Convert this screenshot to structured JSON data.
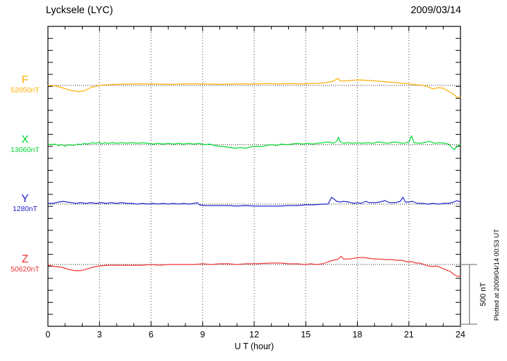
{
  "header": {
    "station_title": "Lycksele (LYC)",
    "date": "2009/03/14"
  },
  "axis": {
    "xlabel": "U T (hour)",
    "tick_labels": [
      "0",
      "3",
      "6",
      "9",
      "12",
      "15",
      "18",
      "21",
      "24"
    ]
  },
  "scale_bar": {
    "label": "500 nT"
  },
  "plot_note": "Plotted at 2009/04/14 00:53 UT",
  "chart_data": {
    "type": "line",
    "title": "Lycksele (LYC) magnetogram 2009/03/14",
    "xlabel": "U T (hour)",
    "x_range_hours": [
      0,
      24
    ],
    "x_tick_interval_hours": 3,
    "grid": "dotted vertical gridlines every 3 h; dotted horizontal baseline per channel",
    "legend_position": "left margin channel labels",
    "scale_bar_nT": 500,
    "series": [
      {
        "name": "F",
        "baseline_label": "52050nT",
        "baseline_nT": 52050,
        "color": "#FFAE00",
        "points_hour_deltaNT": [
          [
            0,
            0
          ],
          [
            0.5,
            -6
          ],
          [
            0.9,
            -23
          ],
          [
            1.3,
            -41
          ],
          [
            1.8,
            -52
          ],
          [
            2.1,
            -46
          ],
          [
            2.5,
            -17
          ],
          [
            3,
            0
          ],
          [
            3.5,
            6
          ],
          [
            4,
            9
          ],
          [
            5,
            12
          ],
          [
            6,
            12
          ],
          [
            7,
            9
          ],
          [
            8,
            12
          ],
          [
            9,
            12
          ],
          [
            10,
            9
          ],
          [
            11,
            12
          ],
          [
            12,
            12
          ],
          [
            12.8,
            15
          ],
          [
            13.5,
            12
          ],
          [
            14,
            15
          ],
          [
            14.7,
            12
          ],
          [
            15.3,
            15
          ],
          [
            15.8,
            17
          ],
          [
            16.2,
            23
          ],
          [
            16.6,
            35
          ],
          [
            16.85,
            58
          ],
          [
            17.05,
            35
          ],
          [
            17.3,
            38
          ],
          [
            17.6,
            41
          ],
          [
            18,
            46
          ],
          [
            18.3,
            44
          ],
          [
            18.7,
            41
          ],
          [
            19,
            38
          ],
          [
            19.5,
            32
          ],
          [
            20,
            26
          ],
          [
            20.5,
            20
          ],
          [
            21,
            12
          ],
          [
            21.4,
            6
          ],
          [
            21.8,
            0
          ],
          [
            22.1,
            -12
          ],
          [
            22.4,
            -29
          ],
          [
            22.7,
            -20
          ],
          [
            23,
            -23
          ],
          [
            23.2,
            -41
          ],
          [
            23.5,
            -64
          ],
          [
            23.8,
            -99
          ],
          [
            24,
            -104
          ]
        ]
      },
      {
        "name": "X",
        "baseline_label": "13060nT",
        "baseline_nT": 13060,
        "color": "#00D830",
        "points_hour_deltaNT": [
          [
            0,
            6
          ],
          [
            0.2,
            0
          ],
          [
            0.4,
            6
          ],
          [
            0.6,
            -6
          ],
          [
            0.8,
            0
          ],
          [
            1,
            -12
          ],
          [
            1.2,
            0
          ],
          [
            1.5,
            -6
          ],
          [
            1.7,
            6
          ],
          [
            1.9,
            0
          ],
          [
            2.1,
            12
          ],
          [
            2.3,
            6
          ],
          [
            2.6,
            17
          ],
          [
            2.8,
            12
          ],
          [
            3,
            23
          ],
          [
            3.1,
            6
          ],
          [
            3.3,
            17
          ],
          [
            3.5,
            12
          ],
          [
            3.8,
            17
          ],
          [
            4,
            12
          ],
          [
            4.3,
            17
          ],
          [
            4.6,
            12
          ],
          [
            4.9,
            17
          ],
          [
            5.2,
            12
          ],
          [
            5.5,
            17
          ],
          [
            5.8,
            12
          ],
          [
            6.1,
            6
          ],
          [
            6.4,
            12
          ],
          [
            6.7,
            6
          ],
          [
            7,
            12
          ],
          [
            7.3,
            6
          ],
          [
            7.6,
            12
          ],
          [
            7.9,
            6
          ],
          [
            8.2,
            12
          ],
          [
            8.5,
            6
          ],
          [
            8.8,
            12
          ],
          [
            9.1,
            0
          ],
          [
            9.4,
            6
          ],
          [
            9.7,
            -6
          ],
          [
            10,
            -12
          ],
          [
            10.3,
            -17
          ],
          [
            10.6,
            -23
          ],
          [
            10.9,
            -29
          ],
          [
            11.2,
            -23
          ],
          [
            11.5,
            -29
          ],
          [
            11.8,
            -17
          ],
          [
            12.1,
            -12
          ],
          [
            12.4,
            -17
          ],
          [
            12.7,
            -6
          ],
          [
            13,
            0
          ],
          [
            13.3,
            -6
          ],
          [
            13.6,
            6
          ],
          [
            13.9,
            0
          ],
          [
            14.2,
            6
          ],
          [
            14.5,
            12
          ],
          [
            14.8,
            6
          ],
          [
            15.1,
            12
          ],
          [
            15.4,
            6
          ],
          [
            15.7,
            12
          ],
          [
            16,
            17
          ],
          [
            16.3,
            23
          ],
          [
            16.6,
            12
          ],
          [
            16.8,
            29
          ],
          [
            16.9,
            64
          ],
          [
            17,
            23
          ],
          [
            17.2,
            12
          ],
          [
            17.4,
            17
          ],
          [
            17.7,
            12
          ],
          [
            18,
            17
          ],
          [
            18.3,
            12
          ],
          [
            18.6,
            17
          ],
          [
            18.9,
            12
          ],
          [
            19.2,
            23
          ],
          [
            19.5,
            17
          ],
          [
            19.8,
            12
          ],
          [
            20.1,
            23
          ],
          [
            20.4,
            17
          ],
          [
            20.7,
            12
          ],
          [
            21,
            23
          ],
          [
            21.15,
            75
          ],
          [
            21.3,
            17
          ],
          [
            21.6,
            12
          ],
          [
            21.9,
            17
          ],
          [
            22.2,
            29
          ],
          [
            22.5,
            12
          ],
          [
            22.8,
            17
          ],
          [
            23.1,
            12
          ],
          [
            23.3,
            6
          ],
          [
            23.5,
            -23
          ],
          [
            23.65,
            -41
          ],
          [
            23.8,
            -12
          ],
          [
            24,
            0
          ]
        ]
      },
      {
        "name": "Y",
        "baseline_label": "1280nT",
        "baseline_nT": 1280,
        "color": "#2222CC",
        "points_hour_deltaNT": [
          [
            0,
            6
          ],
          [
            0.3,
            6
          ],
          [
            0.6,
            17
          ],
          [
            0.9,
            23
          ],
          [
            1.1,
            17
          ],
          [
            1.4,
            12
          ],
          [
            1.6,
            6
          ],
          [
            1.9,
            12
          ],
          [
            2.2,
            6
          ],
          [
            2.5,
            12
          ],
          [
            2.8,
            6
          ],
          [
            3.1,
            12
          ],
          [
            3.4,
            6
          ],
          [
            3.7,
            12
          ],
          [
            4,
            6
          ],
          [
            4.3,
            12
          ],
          [
            4.6,
            6
          ],
          [
            4.9,
            6
          ],
          [
            5.2,
            0
          ],
          [
            5.5,
            6
          ],
          [
            5.8,
            0
          ],
          [
            6.1,
            6
          ],
          [
            6.4,
            0
          ],
          [
            6.7,
            6
          ],
          [
            7,
            0
          ],
          [
            7.3,
            6
          ],
          [
            7.6,
            0
          ],
          [
            7.9,
            6
          ],
          [
            8.2,
            0
          ],
          [
            8.5,
            6
          ],
          [
            8.7,
            12
          ],
          [
            8.8,
            -6
          ],
          [
            9.1,
            -12
          ],
          [
            9.4,
            -12
          ],
          [
            9.7,
            -12
          ],
          [
            10,
            -12
          ],
          [
            10.5,
            -12
          ],
          [
            11,
            -17
          ],
          [
            11.5,
            -12
          ],
          [
            12,
            -17
          ],
          [
            12.5,
            -17
          ],
          [
            13,
            -17
          ],
          [
            13.5,
            -17
          ],
          [
            14,
            -12
          ],
          [
            14.5,
            -12
          ],
          [
            15,
            -6
          ],
          [
            15.5,
            -6
          ],
          [
            16,
            0
          ],
          [
            16.3,
            0
          ],
          [
            16.5,
            58
          ],
          [
            16.65,
            41
          ],
          [
            16.8,
            23
          ],
          [
            17,
            17
          ],
          [
            17.2,
            23
          ],
          [
            17.5,
            17
          ],
          [
            17.8,
            6
          ],
          [
            18,
            12
          ],
          [
            18.2,
            6
          ],
          [
            18.5,
            23
          ],
          [
            18.7,
            12
          ],
          [
            19,
            12
          ],
          [
            19.3,
            17
          ],
          [
            19.6,
            29
          ],
          [
            19.9,
            12
          ],
          [
            20.2,
            12
          ],
          [
            20.5,
            23
          ],
          [
            20.65,
            58
          ],
          [
            20.8,
            17
          ],
          [
            21,
            17
          ],
          [
            21.2,
            23
          ],
          [
            21.5,
            6
          ],
          [
            21.8,
            6
          ],
          [
            22.1,
            0
          ],
          [
            22.4,
            6
          ],
          [
            22.7,
            0
          ],
          [
            23,
            6
          ],
          [
            23.3,
            6
          ],
          [
            23.6,
            17
          ],
          [
            23.8,
            29
          ],
          [
            24,
            17
          ]
        ]
      },
      {
        "name": "Z",
        "baseline_label": "50620nT",
        "baseline_nT": 50620,
        "color": "#EE3333",
        "points_hour_deltaNT": [
          [
            0,
            -6
          ],
          [
            0.4,
            -17
          ],
          [
            0.8,
            -23
          ],
          [
            1.2,
            -41
          ],
          [
            1.6,
            -52
          ],
          [
            1.9,
            -52
          ],
          [
            2.2,
            -41
          ],
          [
            2.6,
            -23
          ],
          [
            3,
            -12
          ],
          [
            3.5,
            -6
          ],
          [
            4,
            -6
          ],
          [
            4.5,
            -6
          ],
          [
            5,
            -6
          ],
          [
            5.5,
            -6
          ],
          [
            6,
            0
          ],
          [
            6.5,
            -6
          ],
          [
            7,
            0
          ],
          [
            7.5,
            0
          ],
          [
            8,
            0
          ],
          [
            8.5,
            0
          ],
          [
            9,
            6
          ],
          [
            9.5,
            0
          ],
          [
            10,
            6
          ],
          [
            10.5,
            6
          ],
          [
            11,
            0
          ],
          [
            11.5,
            6
          ],
          [
            12,
            6
          ],
          [
            12.5,
            9
          ],
          [
            13,
            12
          ],
          [
            13.5,
            12
          ],
          [
            14,
            6
          ],
          [
            14.5,
            6
          ],
          [
            15,
            0
          ],
          [
            15.3,
            6
          ],
          [
            15.6,
            0
          ],
          [
            16,
            6
          ],
          [
            16.3,
            23
          ],
          [
            16.6,
            35
          ],
          [
            16.9,
            46
          ],
          [
            17.05,
            70
          ],
          [
            17.2,
            46
          ],
          [
            17.5,
            46
          ],
          [
            17.8,
            52
          ],
          [
            18.1,
            58
          ],
          [
            18.4,
            58
          ],
          [
            18.7,
            52
          ],
          [
            19,
            46
          ],
          [
            19.3,
            46
          ],
          [
            19.6,
            41
          ],
          [
            20,
            41
          ],
          [
            20.3,
            35
          ],
          [
            20.6,
            35
          ],
          [
            20.9,
            23
          ],
          [
            21.2,
            23
          ],
          [
            21.4,
            12
          ],
          [
            21.6,
            12
          ],
          [
            21.9,
            0
          ],
          [
            22.1,
            -12
          ],
          [
            22.4,
            -17
          ],
          [
            22.6,
            -12
          ],
          [
            22.9,
            -29
          ],
          [
            23.1,
            -41
          ],
          [
            23.4,
            -58
          ],
          [
            23.6,
            -81
          ],
          [
            23.8,
            -99
          ],
          [
            24,
            -99
          ]
        ]
      }
    ]
  }
}
